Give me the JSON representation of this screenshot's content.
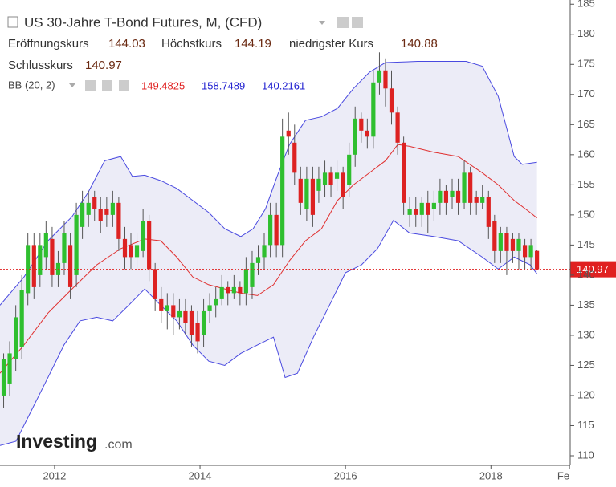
{
  "chart_data": {
    "type": "candlestick",
    "title": "US 30-Jahre T-Bond Futures, M, (CFD)",
    "legend_labels": {
      "open": "Eröffnungskurs",
      "high": "Höchstkurs",
      "low": "niedrigster Kurs",
      "close": "Schlusskurs"
    },
    "indicator": "BB (20, 2)",
    "watermark": {
      "brand": "Investing",
      "suffix": ".com"
    },
    "up_color": "#2fbf2f",
    "down_color": "#dd2222",
    "wick_color": "#555555",
    "last_price_line": true,
    "last_price_color": "#e02020",
    "x": [
      2011.3,
      2011.383,
      2011.467,
      2011.55,
      2011.633,
      2011.717,
      2011.8,
      2011.883,
      2011.967,
      2012.05,
      2012.133,
      2012.217,
      2012.3,
      2012.383,
      2012.467,
      2012.55,
      2012.633,
      2012.717,
      2012.8,
      2012.883,
      2012.967,
      2013.05,
      2013.133,
      2013.217,
      2013.3,
      2013.383,
      2013.467,
      2013.55,
      2013.633,
      2013.717,
      2013.8,
      2013.883,
      2013.967,
      2014.05,
      2014.133,
      2014.217,
      2014.3,
      2014.383,
      2014.467,
      2014.55,
      2014.633,
      2014.717,
      2014.8,
      2014.883,
      2014.967,
      2015.05,
      2015.133,
      2015.217,
      2015.3,
      2015.383,
      2015.467,
      2015.55,
      2015.633,
      2015.717,
      2015.8,
      2015.883,
      2015.967,
      2016.05,
      2016.133,
      2016.217,
      2016.3,
      2016.383,
      2016.467,
      2016.55,
      2016.633,
      2016.717,
      2016.8,
      2016.883,
      2016.967,
      2017.05,
      2017.133,
      2017.217,
      2017.3,
      2017.383,
      2017.467,
      2017.55,
      2017.633,
      2017.717,
      2017.8,
      2017.883,
      2017.967,
      2018.05,
      2018.133,
      2018.217,
      2018.3,
      2018.383,
      2018.467,
      2018.55,
      2018.633
    ],
    "open": [
      120,
      122,
      126,
      128,
      137,
      145,
      140,
      143,
      146,
      140,
      142,
      145,
      140,
      148,
      150,
      153,
      151,
      151,
      150,
      152,
      146,
      145,
      143,
      144,
      149,
      141,
      136,
      134,
      135,
      133,
      134,
      134,
      132,
      130,
      134,
      135,
      136,
      138,
      137,
      138,
      137,
      138,
      142,
      143,
      145,
      150,
      145,
      164,
      162,
      156,
      151,
      156,
      154,
      155,
      157,
      156,
      157,
      155,
      160,
      166,
      164,
      163,
      172,
      174,
      171,
      167,
      162,
      150,
      151,
      150,
      152,
      151,
      152,
      154,
      153,
      154,
      152,
      157,
      153,
      152,
      153,
      149,
      144,
      147,
      146,
      144,
      145,
      143,
      144.03
    ],
    "high": [
      127,
      129,
      135,
      140,
      147,
      147,
      147,
      149,
      148,
      144,
      149,
      147,
      152,
      154,
      154,
      154,
      153,
      153,
      154,
      153,
      148,
      147,
      147,
      151,
      150,
      142,
      138,
      137,
      137,
      136,
      136,
      135,
      134,
      136,
      137,
      138,
      140,
      139,
      140,
      139,
      143,
      144,
      145,
      147,
      152,
      152,
      166,
      167,
      165,
      158,
      158,
      158,
      158,
      159,
      158,
      159,
      158,
      162,
      168,
      167,
      166,
      174,
      177,
      176,
      174,
      168,
      163,
      153,
      153,
      153,
      154,
      154,
      156,
      155,
      156,
      156,
      159,
      158,
      154,
      155,
      154,
      150,
      148,
      148,
      147,
      147,
      146,
      146,
      144.19
    ],
    "low": [
      118,
      120,
      124,
      126,
      135,
      136,
      138,
      141,
      138,
      138,
      140,
      136,
      138,
      146,
      148,
      149,
      147,
      148,
      148,
      144,
      141,
      141,
      141,
      143,
      139,
      134,
      132,
      131,
      130,
      131,
      130,
      128,
      127,
      128,
      132,
      133,
      135,
      135,
      136,
      135,
      135,
      136,
      140,
      141,
      143,
      143,
      143,
      160,
      155,
      150,
      149,
      148,
      152,
      153,
      153,
      154,
      151,
      153,
      158,
      162,
      161,
      161,
      170,
      168,
      165,
      160,
      150,
      148,
      148,
      148,
      147,
      149,
      150,
      150,
      151,
      150,
      151,
      150,
      150,
      151,
      146,
      142,
      142,
      140,
      142,
      141,
      141,
      141,
      140.88
    ],
    "close": [
      126,
      127,
      133,
      137.5,
      145,
      138,
      145,
      147,
      140,
      142,
      147,
      138,
      150,
      152,
      152,
      151,
      149,
      150,
      152,
      146,
      143,
      143,
      145,
      149,
      141,
      136,
      134,
      135,
      133,
      134,
      132,
      130,
      129,
      134,
      135,
      136,
      138,
      137,
      138,
      137,
      141,
      142,
      143,
      145,
      150,
      145,
      163,
      163,
      157,
      152,
      156,
      150,
      156,
      157,
      155,
      157,
      153,
      160,
      166,
      164,
      163,
      172,
      174,
      171,
      167,
      162,
      152,
      151,
      150,
      152,
      150,
      152,
      154,
      152,
      154,
      152,
      157,
      152,
      152,
      153,
      148,
      144,
      147,
      144,
      144,
      146,
      143,
      145,
      140.97
    ],
    "bands": [
      {
        "color": "#4a4ae0",
        "x": [
          2011.25,
          2011.58,
          2011.91,
          2012.24,
          2012.46,
          2012.69,
          2012.91,
          2013.07,
          2013.24,
          2013.46,
          2013.68,
          2013.9,
          2014.12,
          2014.34,
          2014.56,
          2014.73,
          2014.9,
          2015.06,
          2015.23,
          2015.45,
          2015.67,
          2015.89,
          2016.11,
          2016.33,
          2016.55,
          2016.99,
          2017.44,
          2017.66,
          2017.88,
          2018.1,
          2018.32,
          2018.43,
          2018.633
        ],
        "values": [
          135,
          139.7,
          145.7,
          149.7,
          153.7,
          159,
          159.7,
          156.4,
          156.6,
          155.7,
          154.4,
          152.4,
          150.4,
          147.7,
          146.4,
          147.7,
          151,
          156.4,
          161.7,
          165.7,
          166.3,
          167.7,
          171,
          173.7,
          175.3,
          175.5,
          175.5,
          175.5,
          174.7,
          169.7,
          159.7,
          158.4,
          158.7489
        ]
      },
      {
        "color": "#e03030",
        "x": [
          2011.25,
          2011.58,
          2011.91,
          2012.24,
          2012.58,
          2012.91,
          2013.24,
          2013.46,
          2013.68,
          2013.9,
          2014.12,
          2014.34,
          2014.56,
          2014.79,
          2015.01,
          2015.23,
          2015.45,
          2015.67,
          2015.89,
          2016.11,
          2016.33,
          2016.55,
          2016.72,
          2016.88,
          2017.22,
          2017.55,
          2017.88,
          2018.1,
          2018.32,
          2018.54,
          2018.633
        ],
        "values": [
          123.7,
          128.4,
          133.7,
          137.7,
          141.7,
          144.4,
          146,
          145.7,
          143,
          139.7,
          138.4,
          137.7,
          137,
          136.6,
          138.4,
          142.4,
          145.7,
          147.7,
          152.4,
          155,
          157,
          159,
          161.7,
          161.4,
          160.4,
          159.7,
          157,
          155,
          152.4,
          150.4,
          149.4825
        ]
      },
      {
        "color": "#4a4ae0",
        "x": [
          2011.25,
          2011.47,
          2011.69,
          2011.91,
          2012.13,
          2012.35,
          2012.58,
          2012.8,
          2013.02,
          2013.24,
          2013.46,
          2013.68,
          2013.9,
          2014.12,
          2014.34,
          2014.56,
          2014.79,
          2015.01,
          2015.17,
          2015.34,
          2015.56,
          2015.78,
          2016.0,
          2016.22,
          2016.44,
          2016.66,
          2016.88,
          2017.22,
          2017.55,
          2017.88,
          2018.1,
          2018.32,
          2018.54,
          2018.633
        ],
        "values": [
          111.7,
          112.4,
          117.7,
          123,
          128.4,
          132.4,
          133,
          132.4,
          135,
          137.7,
          135,
          132.4,
          128.4,
          125.7,
          125,
          127,
          128.4,
          129.7,
          123,
          123.7,
          129.7,
          135,
          140.4,
          141.7,
          144.4,
          149.1,
          147,
          146.4,
          145.7,
          143,
          141,
          143,
          141.7,
          140.2161
        ]
      }
    ],
    "band_fill": "rgba(120,120,200,0.14)",
    "xlim": [
      2011.25,
      2019.09
    ],
    "xticks": [
      2012,
      2014,
      2016,
      2018,
      {
        "value": 2019.08,
        "label": "Fe"
      }
    ],
    "ylim": [
      108.4,
      185.7
    ],
    "yticks": [
      110,
      115,
      120,
      125,
      130,
      135,
      140,
      145,
      150,
      155,
      160,
      165,
      170,
      175,
      180,
      185
    ]
  }
}
